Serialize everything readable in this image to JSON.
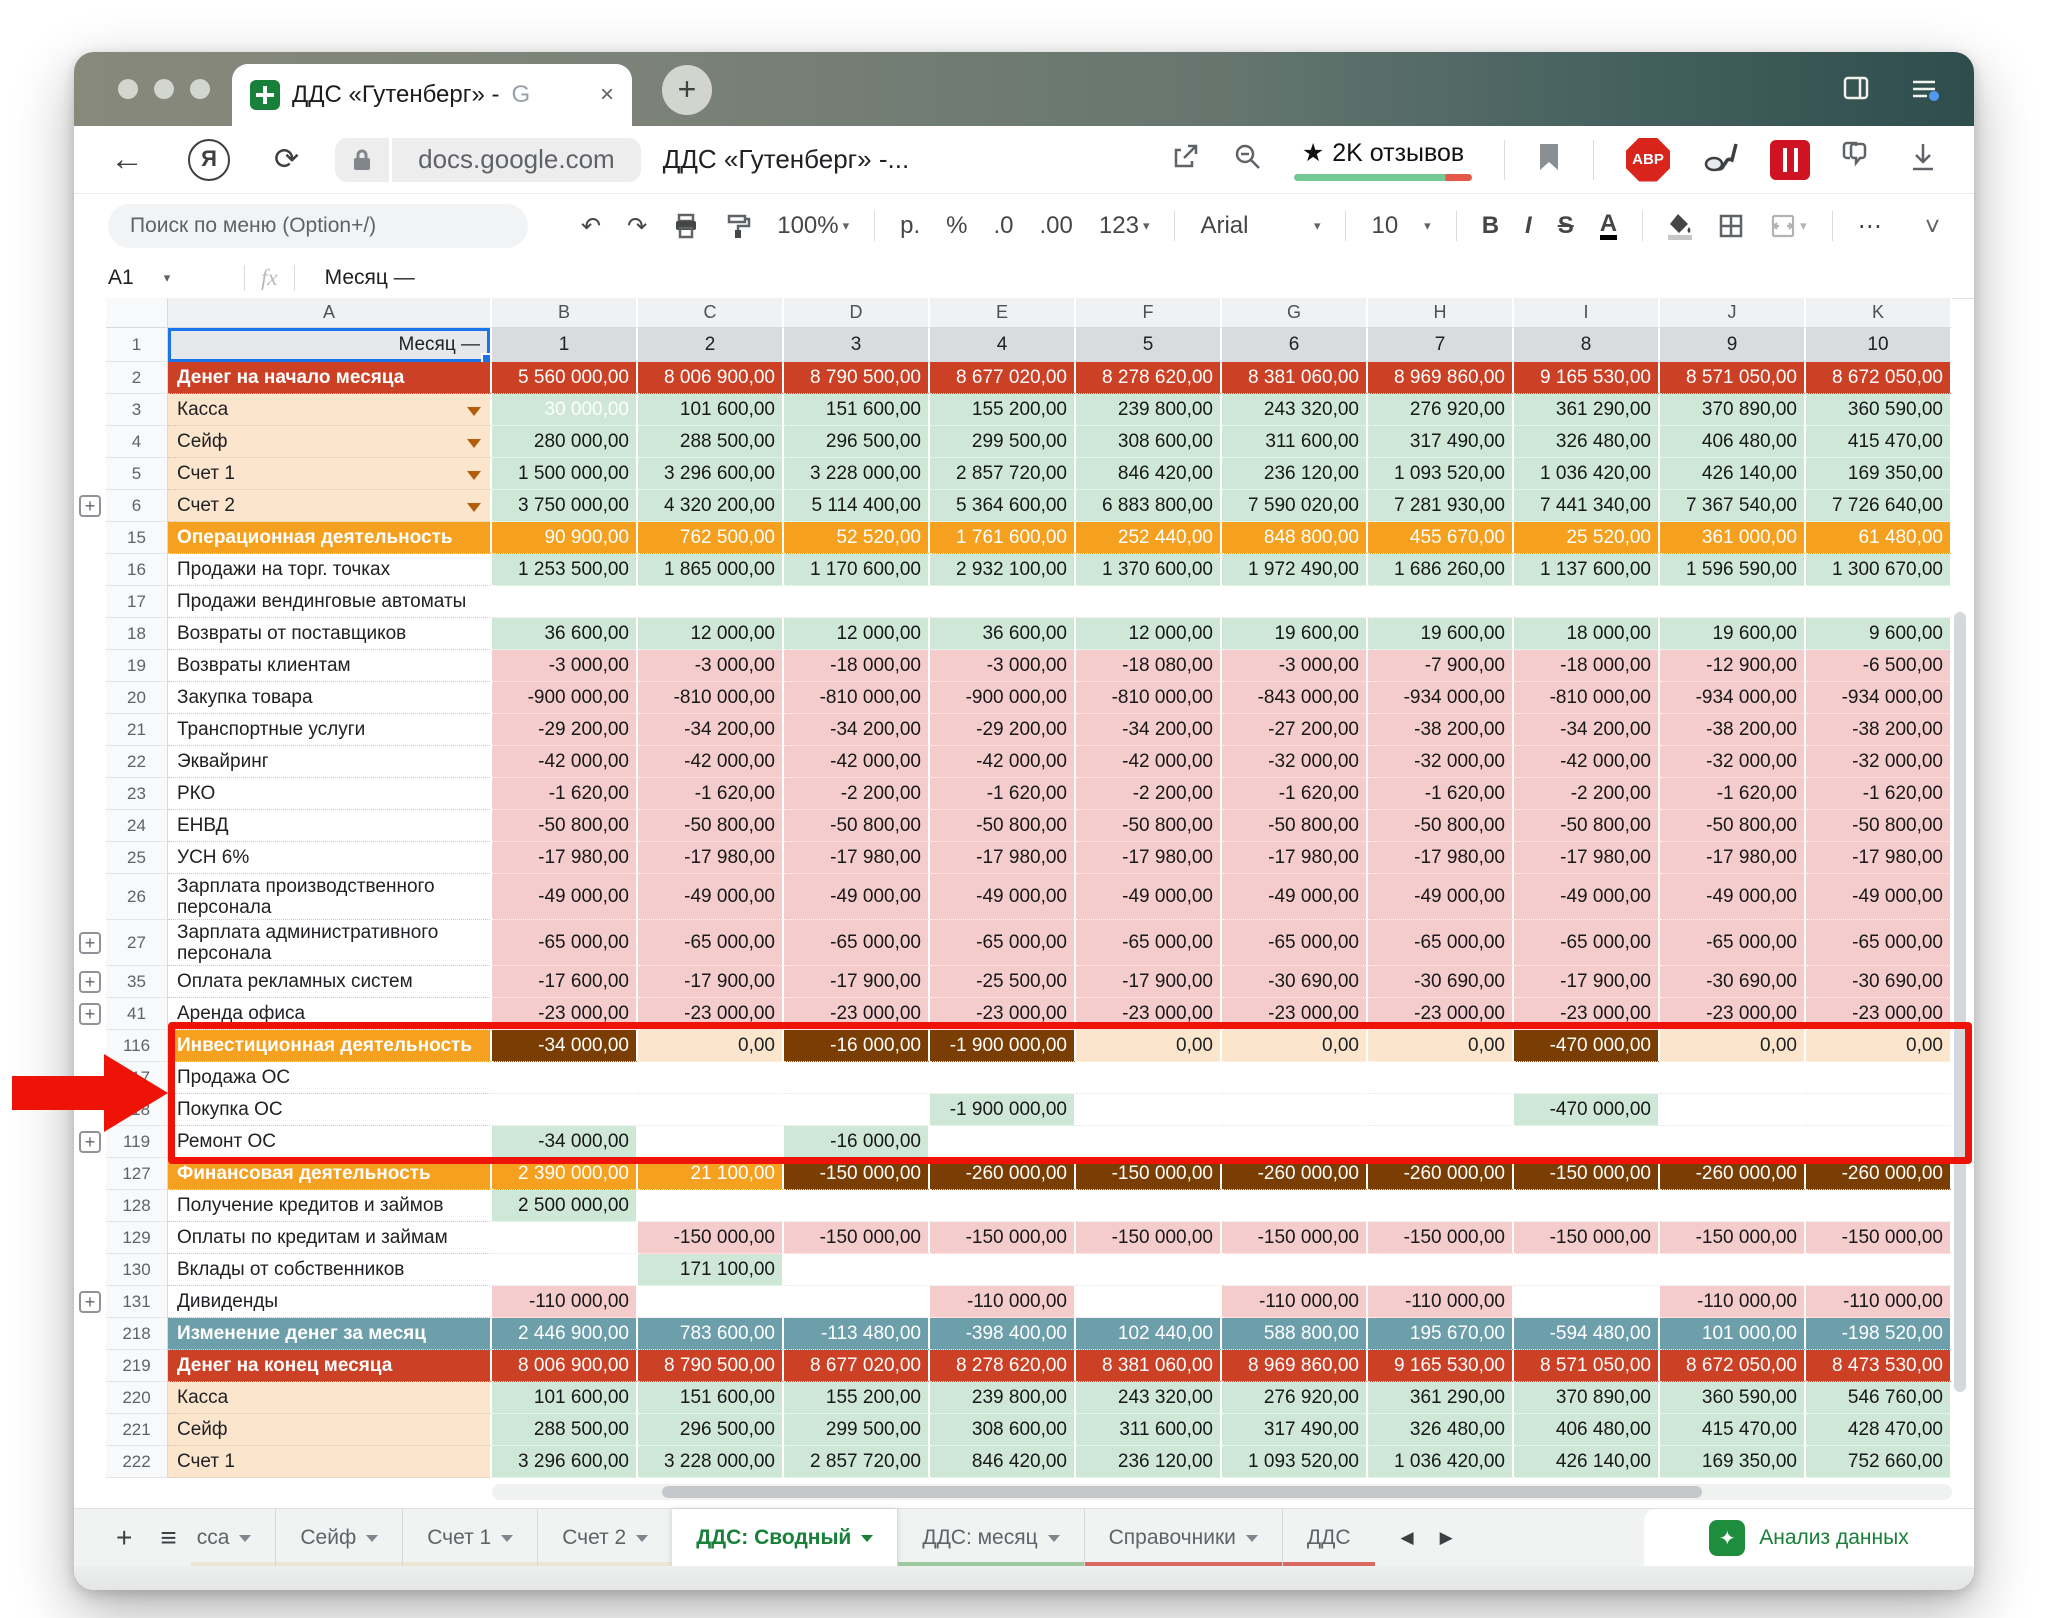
{
  "browser": {
    "tab_title": "ДДС «Гутенберг» -",
    "tab_title_g": "G",
    "close_glyph": "×",
    "new_tab_glyph": "+",
    "back_glyph": "←",
    "ya_glyph": "Я",
    "reload_glyph": "⟳",
    "url": "docs.google.com",
    "page_title": "ДДС «Гутенберг» -...",
    "reviews_star": "★",
    "reviews_label": "2K отзывов",
    "abp_label": "ABP"
  },
  "toolbar": {
    "menu_search_placeholder": "Поиск по меню (Option+/)",
    "undo": "↶",
    "redo": "↷",
    "zoom_value": "100%",
    "currency_label": "р.",
    "percent_label": "%",
    "decrease_decimal": ".0",
    "increase_decimal": ".00",
    "number_format_label": "123",
    "font_family": "Arial",
    "font_size": "10",
    "bold_label": "B",
    "italic_label": "I",
    "strike_label": "S",
    "text_color_label": "A",
    "more_label": "⋯",
    "collapse_glyph": "˅"
  },
  "formula_bar": {
    "cell_ref": "A1",
    "fx_label": "fx",
    "value": "Месяц —"
  },
  "colors": {
    "red_row": "#CC4125",
    "orange_row": "#F5A11F",
    "teal_row": "#6D9FAB",
    "green_cell": "#CFE7D6",
    "pink_cell": "#F4CCCC",
    "brown_cell": "#7A3E05",
    "cream_cell": "#FCE5CD",
    "peach_label": "#FCE5CD",
    "selection_blue": "#1A73E8",
    "active_tab_green": "#188038",
    "annotation_red": "#EE1306"
  },
  "grid": {
    "column_letters": [
      "A",
      "B",
      "C",
      "D",
      "E",
      "F",
      "G",
      "H",
      "I",
      "J",
      "K"
    ],
    "month_label": "Месяц —",
    "month_numbers": [
      "1",
      "2",
      "3",
      "4",
      "5",
      "6",
      "7",
      "8",
      "9",
      "10"
    ],
    "rows": [
      {
        "n": "2",
        "label": "Денег на начало месяца",
        "ls": "red",
        "vs": "red",
        "cells": [
          "5 560 000,00",
          "8 006 900,00",
          "8 790 500,00",
          "8 677 020,00",
          "8 278 620,00",
          "8 381 060,00",
          "8 969 860,00",
          "9 165 530,00",
          "8 571 050,00",
          "8 672 050,00"
        ]
      },
      {
        "n": "3",
        "label": "Касса",
        "ls": "peach",
        "dd": true,
        "vs": "green",
        "cells": [
          {
            "v": "30 000,00",
            "s": "green wt"
          },
          "101 600,00",
          "151 600,00",
          "155 200,00",
          "239 800,00",
          "243 320,00",
          "276 920,00",
          "361 290,00",
          "370 890,00",
          "360 590,00"
        ]
      },
      {
        "n": "4",
        "label": "Сейф",
        "ls": "peach",
        "dd": true,
        "vs": "green",
        "cells": [
          "280 000,00",
          "288 500,00",
          "296 500,00",
          "299 500,00",
          "308 600,00",
          "311 600,00",
          "317 490,00",
          "326 480,00",
          "406 480,00",
          "415 470,00"
        ]
      },
      {
        "n": "5",
        "label": "Счет 1",
        "ls": "peach",
        "dd": true,
        "vs": "green",
        "cells": [
          "1 500 000,00",
          "3 296 600,00",
          "3 228 000,00",
          "2 857 720,00",
          "846 420,00",
          "236 120,00",
          "1 093 520,00",
          "1 036 420,00",
          "426 140,00",
          "169 350,00"
        ]
      },
      {
        "n": "6",
        "label": "Счет 2",
        "ls": "peach",
        "dd": true,
        "plus": true,
        "vs": "green",
        "cells": [
          "3 750 000,00",
          "4 320 200,00",
          "5 114 400,00",
          "5 364 600,00",
          "6 883 800,00",
          "7 590 020,00",
          "7 281 930,00",
          "7 441 340,00",
          "7 367 540,00",
          "7 726 640,00"
        ]
      },
      {
        "n": "15",
        "label": "Операционная деятельность",
        "ls": "orange",
        "vs": "orange",
        "cells": [
          "90 900,00",
          "762 500,00",
          "52 520,00",
          "1 761 600,00",
          "252 440,00",
          "848 800,00",
          "455 670,00",
          "25 520,00",
          "361 000,00",
          "61 480,00"
        ]
      },
      {
        "n": "16",
        "label": "Продажи на торг. точках",
        "ls": "",
        "vs": "green",
        "cells": [
          "1 253 500,00",
          "1 865 000,00",
          "1 170 600,00",
          "2 932 100,00",
          "1 370 600,00",
          "1 972 490,00",
          "1 686 260,00",
          "1 137 600,00",
          "1 596 590,00",
          "1 300 670,00"
        ]
      },
      {
        "n": "17",
        "label": "Продажи вендинговые автоматы",
        "ls": "",
        "vs": "green",
        "cells": [
          "",
          "",
          "",
          "",
          "",
          "",
          "",
          "",
          "",
          ""
        ]
      },
      {
        "n": "18",
        "label": "Возвраты от поставщиков",
        "ls": "",
        "vs": "green",
        "cells": [
          "36 600,00",
          "12 000,00",
          "12 000,00",
          "36 600,00",
          "12 000,00",
          "19 600,00",
          "19 600,00",
          "18 000,00",
          "19 600,00",
          "9 600,00"
        ]
      },
      {
        "n": "19",
        "label": "Возвраты клиентам",
        "ls": "",
        "vs": "pink",
        "cells": [
          "-3 000,00",
          "-3 000,00",
          "-18 000,00",
          "-3 000,00",
          "-18 080,00",
          "-3 000,00",
          "-7 900,00",
          "-18 000,00",
          "-12 900,00",
          "-6 500,00"
        ]
      },
      {
        "n": "20",
        "label": "Закупка товара",
        "ls": "",
        "vs": "pink",
        "cells": [
          "-900 000,00",
          "-810 000,00",
          "-810 000,00",
          "-900 000,00",
          "-810 000,00",
          "-843 000,00",
          "-934 000,00",
          "-810 000,00",
          "-934 000,00",
          "-934 000,00"
        ]
      },
      {
        "n": "21",
        "label": "Транспортные услуги",
        "ls": "",
        "vs": "pink",
        "cells": [
          "-29 200,00",
          "-34 200,00",
          "-34 200,00",
          "-29 200,00",
          "-34 200,00",
          "-27 200,00",
          "-38 200,00",
          "-34 200,00",
          "-38 200,00",
          "-38 200,00"
        ]
      },
      {
        "n": "22",
        "label": "Эквайринг",
        "ls": "",
        "vs": "pink",
        "cells": [
          "-42 000,00",
          "-42 000,00",
          "-42 000,00",
          "-42 000,00",
          "-42 000,00",
          "-32 000,00",
          "-32 000,00",
          "-42 000,00",
          "-32 000,00",
          "-32 000,00"
        ]
      },
      {
        "n": "23",
        "label": "РКО",
        "ls": "",
        "vs": "pink",
        "cells": [
          "-1 620,00",
          "-1 620,00",
          "-2 200,00",
          "-1 620,00",
          "-2 200,00",
          "-1 620,00",
          "-1 620,00",
          "-2 200,00",
          "-1 620,00",
          "-1 620,00"
        ]
      },
      {
        "n": "24",
        "label": "ЕНВД",
        "ls": "",
        "vs": "pink",
        "cells": [
          "-50 800,00",
          "-50 800,00",
          "-50 800,00",
          "-50 800,00",
          "-50 800,00",
          "-50 800,00",
          "-50 800,00",
          "-50 800,00",
          "-50 800,00",
          "-50 800,00"
        ]
      },
      {
        "n": "25",
        "label": "УСН 6%",
        "ls": "",
        "vs": "pink",
        "cells": [
          "-17 980,00",
          "-17 980,00",
          "-17 980,00",
          "-17 980,00",
          "-17 980,00",
          "-17 980,00",
          "-17 980,00",
          "-17 980,00",
          "-17 980,00",
          "-17 980,00"
        ]
      },
      {
        "n": "26",
        "label": "Зарплата производственного персонала",
        "ls": "",
        "h": "tall",
        "vs": "pink",
        "cells": [
          "-49 000,00",
          "-49 000,00",
          "-49 000,00",
          "-49 000,00",
          "-49 000,00",
          "-49 000,00",
          "-49 000,00",
          "-49 000,00",
          "-49 000,00",
          "-49 000,00"
        ]
      },
      {
        "n": "27",
        "label": "Зарплата административного персонала",
        "ls": "",
        "h": "tall",
        "plus": true,
        "vs": "pink",
        "cells": [
          "-65 000,00",
          "-65 000,00",
          "-65 000,00",
          "-65 000,00",
          "-65 000,00",
          "-65 000,00",
          "-65 000,00",
          "-65 000,00",
          "-65 000,00",
          "-65 000,00"
        ]
      },
      {
        "n": "35",
        "label": "Оплата рекламных систем",
        "ls": "",
        "plus": true,
        "vs": "pink",
        "cells": [
          "-17 600,00",
          "-17 900,00",
          "-17 900,00",
          "-25 500,00",
          "-17 900,00",
          "-30 690,00",
          "-30 690,00",
          "-17 900,00",
          "-30 690,00",
          "-30 690,00"
        ]
      },
      {
        "n": "41",
        "label": "Аренда офиса",
        "ls": "",
        "plus": true,
        "vs": "pink",
        "cells": [
          "-23 000,00",
          "-23 000,00",
          "-23 000,00",
          "-23 000,00",
          "-23 000,00",
          "-23 000,00",
          "-23 000,00",
          "-23 000,00",
          "-23 000,00",
          "-23 000,00"
        ]
      },
      {
        "n": "116",
        "label": "Инвестиционная деятельность",
        "ls": "orange",
        "vs": "cream",
        "cells": [
          {
            "v": "-34 000,00",
            "s": "brown"
          },
          {
            "v": "0,00",
            "s": "cream"
          },
          {
            "v": "-16 000,00",
            "s": "brown"
          },
          {
            "v": "-1 900 000,00",
            "s": "brown"
          },
          {
            "v": "0,00",
            "s": "cream"
          },
          {
            "v": "0,00",
            "s": "cream"
          },
          {
            "v": "0,00",
            "s": "cream"
          },
          {
            "v": "-470 000,00",
            "s": "brown"
          },
          {
            "v": "0,00",
            "s": "cream"
          },
          {
            "v": "0,00",
            "s": "cream"
          }
        ]
      },
      {
        "n": "117",
        "label": "Продажа ОС",
        "ls": "",
        "vs": "green",
        "cells": [
          "",
          "",
          "",
          "",
          "",
          "",
          "",
          "",
          "",
          ""
        ]
      },
      {
        "n": "118",
        "label": "Покупка ОС",
        "ls": "",
        "vs": "green",
        "cells": [
          "",
          "",
          "",
          "-1 900 000,00",
          "",
          "",
          "",
          "-470 000,00",
          "",
          ""
        ]
      },
      {
        "n": "119",
        "label": "Ремонт ОС",
        "ls": "",
        "plus": true,
        "vs": "green",
        "cells": [
          "-34 000,00",
          "",
          "-16 000,00",
          "",
          "",
          "",
          "",
          "",
          "",
          ""
        ]
      },
      {
        "n": "127",
        "label": "Финансовая деятельность",
        "ls": "orange",
        "vs": "brown",
        "cells": [
          {
            "v": "2 390 000,00",
            "s": "orange"
          },
          {
            "v": "21 100,00",
            "s": "orange"
          },
          {
            "v": "-150 000,00",
            "s": "brown"
          },
          {
            "v": "-260 000,00",
            "s": "brown"
          },
          {
            "v": "-150 000,00",
            "s": "brown"
          },
          {
            "v": "-260 000,00",
            "s": "brown"
          },
          {
            "v": "-260 000,00",
            "s": "brown"
          },
          {
            "v": "-150 000,00",
            "s": "brown"
          },
          {
            "v": "-260 000,00",
            "s": "brown"
          },
          {
            "v": "-260 000,00",
            "s": "brown"
          }
        ]
      },
      {
        "n": "128",
        "label": "Получение кредитов и займов",
        "ls": "",
        "vs": "green",
        "cells": [
          "2 500 000,00",
          "",
          "",
          "",
          "",
          "",
          "",
          "",
          "",
          ""
        ]
      },
      {
        "n": "129",
        "label": "Оплаты по кредитам и займам",
        "ls": "",
        "vs": "pink",
        "cells": [
          "",
          "-150 000,00",
          "-150 000,00",
          "-150 000,00",
          "-150 000,00",
          "-150 000,00",
          "-150 000,00",
          "-150 000,00",
          "-150 000,00",
          "-150 000,00"
        ]
      },
      {
        "n": "130",
        "label": "Вклады от собственников",
        "ls": "",
        "vs": "green",
        "cells": [
          "",
          "171 100,00",
          "",
          "",
          "",
          "",
          "",
          "",
          "",
          ""
        ]
      },
      {
        "n": "131",
        "label": "Дивиденды",
        "ls": "",
        "plus": true,
        "vs": "pink",
        "cells": [
          "-110 000,00",
          "",
          "",
          "-110 000,00",
          "",
          "-110 000,00",
          "-110 000,00",
          "",
          "-110 000,00",
          "-110 000,00"
        ]
      },
      {
        "n": "218",
        "label": "Изменение денег за месяц",
        "ls": "teal",
        "vs": "teal",
        "cells": [
          "2 446 900,00",
          "783 600,00",
          "-113 480,00",
          "-398 400,00",
          "102 440,00",
          "588 800,00",
          "195 670,00",
          "-594 480,00",
          "101 000,00",
          "-198 520,00"
        ]
      },
      {
        "n": "219",
        "label": "Денег на конец месяца",
        "ls": "red",
        "vs": "red",
        "cells": [
          "8 006 900,00",
          "8 790 500,00",
          "8 677 020,00",
          "8 278 620,00",
          "8 381 060,00",
          "8 969 860,00",
          "9 165 530,00",
          "8 571 050,00",
          "8 672 050,00",
          "8 473 530,00"
        ]
      },
      {
        "n": "220",
        "label": "Касса",
        "ls": "peach",
        "vs": "green",
        "cells": [
          "101 600,00",
          "151 600,00",
          "155 200,00",
          "239 800,00",
          "243 320,00",
          "276 920,00",
          "361 290,00",
          "370 890,00",
          "360 590,00",
          "546 760,00"
        ]
      },
      {
        "n": "221",
        "label": "Сейф",
        "ls": "peach",
        "vs": "green",
        "cells": [
          "288 500,00",
          "296 500,00",
          "299 500,00",
          "308 600,00",
          "311 600,00",
          "317 490,00",
          "326 480,00",
          "406 480,00",
          "415 470,00",
          "428 470,00"
        ]
      },
      {
        "n": "222",
        "label": "Счет 1",
        "ls": "peach",
        "vs": "green",
        "cells": [
          "3 296 600,00",
          "3 228 000,00",
          "2 857 720,00",
          "846 420,00",
          "236 120,00",
          "1 093 520,00",
          "1 036 420,00",
          "426 140,00",
          "169 350,00",
          "752 660,00"
        ]
      }
    ]
  },
  "sheetbar": {
    "add_glyph": "+",
    "all_sheets_glyph": "≡",
    "prev_glyph": "◀",
    "next_glyph": "▶",
    "tabs": [
      {
        "label": "сса",
        "strip": "#ece6d3"
      },
      {
        "label": "Сейф",
        "strip": "#ece6d3"
      },
      {
        "label": "Счет 1",
        "strip": "#ece6d3"
      },
      {
        "label": "Счет 2",
        "strip": "#ece6d3"
      },
      {
        "label": "ДДС: Сводный",
        "active": true,
        "strip": "#d9d2e9"
      },
      {
        "label": "ДДС: месяц",
        "strip": "#9fc9a0"
      },
      {
        "label": "Справочники",
        "strip": "#d96a5f"
      },
      {
        "label": "ДДС",
        "strip": "#d96a5f"
      }
    ],
    "explore_icon": "✦",
    "explore_label": "Анализ данных"
  }
}
